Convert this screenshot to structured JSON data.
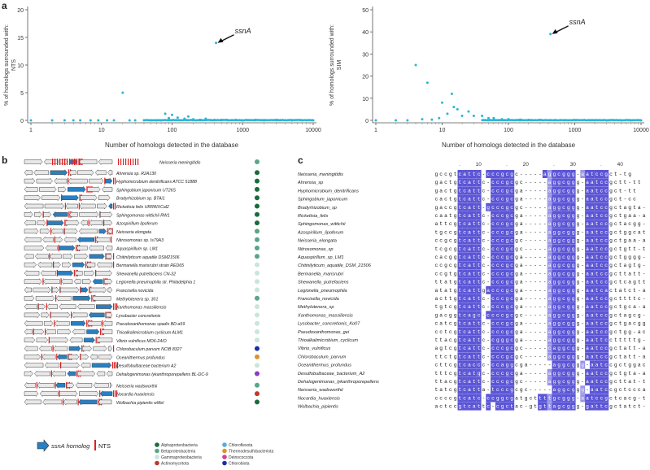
{
  "panels": {
    "a": "a",
    "b": "b",
    "c": "c"
  },
  "panel_a": {
    "left": {
      "ylabel_1": "% of homologs surrounded with:",
      "ylabel_2": "NTS",
      "xlabel": "Number of homologs detected in the database",
      "y_ticks": [
        "0",
        "5",
        "10",
        "15",
        "20"
      ],
      "x_ticks": [
        "1",
        "10",
        "100",
        "1000",
        "10000"
      ],
      "annotation": "ssnA"
    },
    "right": {
      "ylabel_1": "% of homologs surrounded with:",
      "ylabel_2": "SIM",
      "xlabel": "Number of homologs detected in the database",
      "y_ticks": [
        "0",
        "10",
        "20",
        "30",
        "40",
        "50"
      ],
      "x_ticks": [
        "1",
        "10",
        "100",
        "1000",
        "10000"
      ],
      "annotation": "ssnA"
    }
  },
  "chart_data": [
    {
      "type": "scatter",
      "xlabel": "Number of homologs detected in the database",
      "ylabel": "% of homologs surrounded with: NTS",
      "xscale": "log",
      "xlim": [
        1,
        10000
      ],
      "ylim": [
        0,
        20
      ],
      "color": "#29b6d8",
      "annotation": {
        "label": "ssnA",
        "x": 420,
        "y": 14
      },
      "points": [
        [
          1,
          0
        ],
        [
          2,
          0
        ],
        [
          3,
          0
        ],
        [
          4,
          0
        ],
        [
          5,
          0
        ],
        [
          7,
          0
        ],
        [
          9,
          0
        ],
        [
          12,
          0
        ],
        [
          15,
          0
        ],
        [
          20,
          5
        ],
        [
          25,
          0
        ],
        [
          30,
          0
        ],
        [
          40,
          0
        ],
        [
          50,
          0
        ],
        [
          60,
          0
        ],
        [
          70,
          0
        ],
        [
          80,
          1.2
        ],
        [
          90,
          0.4
        ],
        [
          100,
          1.0
        ],
        [
          120,
          0.5
        ],
        [
          150,
          0.3
        ],
        [
          170,
          0.7
        ],
        [
          200,
          0.2
        ],
        [
          250,
          0.1
        ],
        [
          300,
          0.3
        ],
        [
          400,
          0.1
        ],
        [
          420,
          14
        ],
        [
          500,
          0.1
        ],
        [
          600,
          0.1
        ],
        [
          800,
          0.1
        ],
        [
          1000,
          0
        ],
        [
          1500,
          0.1
        ],
        [
          2000,
          0
        ],
        [
          3000,
          0.1
        ],
        [
          5000,
          0
        ],
        [
          7000,
          0
        ],
        [
          10000,
          0
        ]
      ]
    },
    {
      "type": "scatter",
      "xlabel": "Number of homologs detected in the database",
      "ylabel": "% of homologs surrounded with: SIM",
      "xscale": "log",
      "xlim": [
        1,
        10000
      ],
      "ylim": [
        0,
        50
      ],
      "color": "#29b6d8",
      "annotation": {
        "label": "ssnA",
        "x": 430,
        "y": 39
      },
      "points": [
        [
          1,
          0
        ],
        [
          2,
          0
        ],
        [
          3,
          0
        ],
        [
          4,
          25
        ],
        [
          5,
          0.5
        ],
        [
          6,
          17
        ],
        [
          7,
          0.3
        ],
        [
          9,
          1
        ],
        [
          10,
          8
        ],
        [
          12,
          3
        ],
        [
          14,
          12
        ],
        [
          15,
          6
        ],
        [
          17,
          5
        ],
        [
          20,
          2
        ],
        [
          25,
          4
        ],
        [
          30,
          2
        ],
        [
          40,
          2
        ],
        [
          50,
          1
        ],
        [
          60,
          1
        ],
        [
          80,
          0.5
        ],
        [
          100,
          0.5
        ],
        [
          150,
          0.3
        ],
        [
          200,
          0.2
        ],
        [
          300,
          0.2
        ],
        [
          430,
          39
        ],
        [
          500,
          0.1
        ],
        [
          700,
          0.1
        ],
        [
          1000,
          0.1
        ],
        [
          2000,
          0
        ],
        [
          3000,
          0
        ],
        [
          5000,
          0
        ],
        [
          7000,
          0
        ],
        [
          10000,
          0
        ]
      ]
    }
  ],
  "panel_b": {
    "rows": [
      {
        "name": "Neisseria meningitidis",
        "color": "#5aa58a"
      },
      {
        "name": "Ahrensia sp. R2A130",
        "color": "#1a6b3c"
      },
      {
        "name": "Hyphomicrobium denitrificans ATCC 51888",
        "color": "#1a6b3c"
      },
      {
        "name": "Sphingobium japonicum UT26S",
        "color": "#1a6b3c"
      },
      {
        "name": "Bradyrhizobium sp. BTAi1",
        "color": "#1a6b3c"
      },
      {
        "name": "Rickettsia felis URRWXCal2",
        "color": "#1a6b3c"
      },
      {
        "name": "Sphingomonas wittichii RW1",
        "color": "#1a6b3c"
      },
      {
        "name": "Azospirillum lipoferum",
        "color": "#1a6b3c"
      },
      {
        "name": "Neisseria elongata",
        "color": "#5aa58a"
      },
      {
        "name": "Nitrosomonas sp. Is79A3",
        "color": "#5aa58a"
      },
      {
        "name": "Aquaspirillum sp. LM1",
        "color": "#5aa58a"
      },
      {
        "name": "Chitinilyticum aquatile DSM21506",
        "color": "#5aa58a"
      },
      {
        "name": "Bermanella marisrubri strain RED65",
        "color": "#c9e6d9"
      },
      {
        "name": "Shewanella putrefaciens CN-32",
        "color": "#c9e6d9"
      },
      {
        "name": "Legionella pneumophila str. Philadelphia 1",
        "color": "#c9e6d9"
      },
      {
        "name": "Francisella novicida",
        "color": "#c9e6d9"
      },
      {
        "name": "Methylotenera sp. 301",
        "color": "#5aa58a"
      },
      {
        "name": "Xanthomonas massiliensis",
        "color": "#c9e6d9"
      },
      {
        "name": "Lysobacter concretionis",
        "color": "#c9e6d9"
      },
      {
        "name": "Pseudoxanthomonas spadix BD-a59",
        "color": "#c9e6d9"
      },
      {
        "name": "Thioalkalimicrobium cyclicum ALM1",
        "color": "#c9e6d9"
      },
      {
        "name": "Vibrio vulnificus MO6-24/O",
        "color": "#c9e6d9"
      },
      {
        "name": "Chlorobaculum parvum NCIB 8327",
        "color": "#1a2fa8"
      },
      {
        "name": "Oceanithermus profundus",
        "color": "#e0922a"
      },
      {
        "name": "Desulfobulbaceae bacterium A2",
        "color": "#c9e6d9"
      },
      {
        "name": "Dehalogenimonas lykanthroporepellens BL-DC-9",
        "color": "#8a3cc4"
      },
      {
        "name": "Neisseria wadsworthii",
        "color": "#5aa58a"
      },
      {
        "name": "Nocardia huaxiensis",
        "color": "#c0392b"
      },
      {
        "name": "Wolbachia pipientis wMel",
        "color": "#1a6b3c"
      }
    ],
    "legend": {
      "gene_label": "ssnA homolog",
      "nts_label": "NTS",
      "taxa": [
        {
          "name": "Alphaproteobacteria",
          "color": "#1a6b3c"
        },
        {
          "name": "Betaproteobacteria",
          "color": "#5aa58a"
        },
        {
          "name": "Gammaproteobacteria",
          "color": "#c9e6d9"
        },
        {
          "name": "Actinomycetota",
          "color": "#c0392b"
        },
        {
          "name": "Chloroflexota",
          "color": "#5aa9e0"
        },
        {
          "name": "Thermodesulfobacteriota",
          "color": "#e0922a"
        },
        {
          "name": "Deinococcota",
          "color": "#d63f8c"
        },
        {
          "name": "Chlorobiota",
          "color": "#1a2fa8"
        }
      ]
    }
  },
  "panel_c": {
    "ruler": [
      "10",
      "20",
      "30",
      "40"
    ],
    "rows": [
      {
        "name": "Neisseria_meningitidis",
        "seq": "gccgtcattc-cccgcgc-----aggcggg-aatccgct-tg"
      },
      {
        "name": "Ahrensia_sp",
        "seq": "gactgtcattc-cccgcgc-----aggcggg-aatccgctt-tt"
      },
      {
        "name": "Hyphomicrobium_denitrificans",
        "seq": "gactgtcattc-cccgcga-----aggcggg-aatccgct-tt"
      },
      {
        "name": "Sphingobium_japonicum",
        "seq": "cactgtcattc-cccgcga-----aggcggg-aatccgct-cc"
      },
      {
        "name": "Bradyrhizobium_sp",
        "seq": "gaccgtcatt-gcccgcgc-----aggcggg-aatccgctagta-cg"
      },
      {
        "name": "Rickettsia_felis",
        "seq": "caatgtcattc-cccgcga-----aggcggg-aatccgctgaa-aa"
      },
      {
        "name": "Sphingomonas_wittichii",
        "seq": "attcgtcattc-cccgcga-----aggcggg-aatccgctacgg-tt"
      },
      {
        "name": "Azospirillum_lipoferum",
        "seq": "tgccgtcattc-cccgcga-----aggcggg-aatccgctggcatc"
      },
      {
        "name": "Neisseria_elongata",
        "seq": "ccgcgtcattc-cccgcgc-----aggcggg-aatccgctgaa-at"
      },
      {
        "name": "Nitrosomonas_sp",
        "seq": "tcgcgtcattc-cccgcgc-----aggcggg-aatccgctgtt-tt"
      },
      {
        "name": "Aquaspirillum_sp_LM1",
        "seq": "cacggtcattc-cccgcga-----aggcggg-aatccgctgggg-gc"
      },
      {
        "name": "Chitinilyticum_aquatile_DSM_21506",
        "seq": "ccgcgtcattc-cccgcga-----aggcggg-aatccgctagtg-ac"
      },
      {
        "name": "Bermanella_marisrubri",
        "seq": "ccgtgtcattc-cccgcga-----aggcggg-aatccgcttatt-ag"
      },
      {
        "name": "Shewanella_putrefaciens",
        "seq": "ttatgtcattc-cccgcga-----aggcggg-aatccgctcagtta"
      },
      {
        "name": "Legionella_pneumophila",
        "seq": "atatgtcattgacccgcga-----aggcggg-aatcactatct-at"
      },
      {
        "name": "Francisella_novicida",
        "seq": "acttgtcattc-cccgcga-----aggcggg-aatccgcttttc-ga"
      },
      {
        "name": "Methylotenera_sp",
        "seq": "tgtcgtcattc-cccgcga-----aggcggg-aatccgctgca-aa"
      },
      {
        "name": "Xanthomonas_massiliensis",
        "seq": "gacggtcagc-ccccgcgc-----aggcggg-aatccgctagcg-cc"
      },
      {
        "name": "Lysobacter_concretionis_Ko07",
        "seq": "catcgtcattc-cccgcga-----aggcggg-aatccgctgacggg-ac"
      },
      {
        "name": "Pseudoxanthomonas_gei",
        "seq": "cctcgtcattc-cccgcga-----aggcggg-aatccgctgg-ac"
      },
      {
        "name": "Thioalkalimicrobium_cyclicum",
        "seq": "ttacgtcattc-cgggcga-----aggcggg-aattcctttttg-ag"
      },
      {
        "name": "Vibrio_vulnificus",
        "seq": "agtcgtcattc-cccgcgc-----caggcgg-aatccgctatt-at"
      },
      {
        "name": "Chlorobaculum_parvum",
        "seq": "ttctgtcattc-cccgcgc-----aggcggg-aatccgctatt-at"
      },
      {
        "name": "Oceanithermus_profundus",
        "seq": "cttcgtcaccc-ccaggcga-----aggcggg-aatccgctggac-cg"
      },
      {
        "name": "Desulfobulbaceae_bacterium_A2",
        "seq": "tttcgtcatgc-cccgcga-----aggcggg-aatccgctgta-ag"
      },
      {
        "name": "Dehalogenimonas_lykanthroporepellens",
        "seq": "ttacgtcattc-cccgcgc-----aggcggg-aatccgcttat-tc"
      },
      {
        "name": "Neisseria_wadsworthii",
        "seq": "tatcgtcatta-tcccgcgc-----aggcggg-aatccgctcccaa-aa"
      },
      {
        "name": "Nocardia_huaxiensis",
        "seq": "ccccgtcatc-ccggcgatgcttttgcggg-aatccgctcacg-tg"
      },
      {
        "name": "Wolbachia_pipientis",
        "seq": "actccgtcattc-cgctac-gtgttagcggg-gattcgctatct-gc"
      }
    ]
  }
}
